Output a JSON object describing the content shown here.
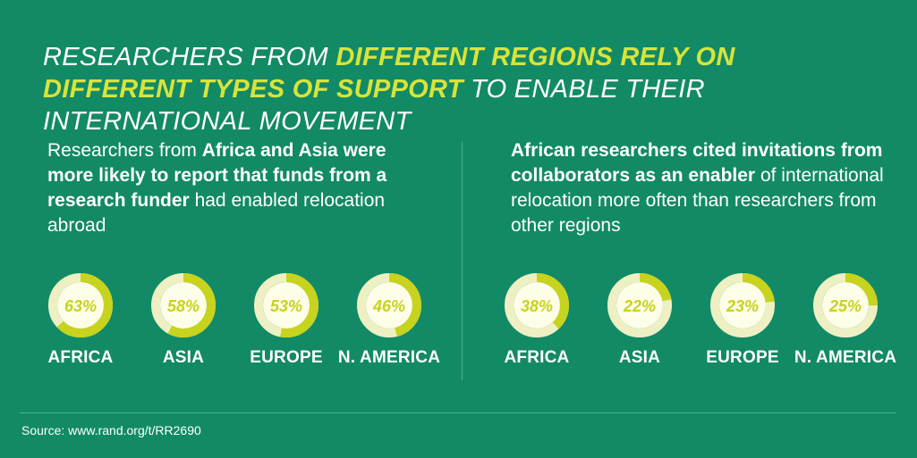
{
  "title": {
    "seg1": "RESEARCHERS FROM ",
    "seg2": "DIFFERENT REGIONS RELY ON DIFFERENT TYPES OF SUPPORT",
    "seg3": " TO ENABLE THEIR INTERNATIONAL MOVEMENT"
  },
  "colors": {
    "background": "#128a66",
    "accent": "#c7d31c",
    "ring_track": "#eef0c4",
    "ring_inner": "#fdfde8"
  },
  "left_panel": {
    "text_1": "Researchers from ",
    "text_2": "Africa and Asia were more likely to report that funds from a research funder",
    "text_3": " had enabled relocation abroad"
  },
  "right_panel": {
    "text_1": "African researchers cited invitations from collaborators as an enabler",
    "text_2": " of international relocation more often than researchers from other regions"
  },
  "chart_data": [
    {
      "type": "donut",
      "description": "Funds from a research funder had enabled relocation abroad",
      "categories": [
        "AFRICA",
        "ASIA",
        "EUROPE",
        "N. AMERICA"
      ],
      "values": [
        63,
        58,
        53,
        46
      ],
      "labels": [
        "63%",
        "58%",
        "53%",
        "46%"
      ],
      "unit": "%",
      "max": 100
    },
    {
      "type": "donut",
      "description": "Invitations from collaborators as an enabler of international relocation",
      "categories": [
        "AFRICA",
        "ASIA",
        "EUROPE",
        "N. AMERICA"
      ],
      "values": [
        38,
        22,
        23,
        25
      ],
      "labels": [
        "38%",
        "22%",
        "23%",
        "25%"
      ],
      "unit": "%",
      "max": 100
    }
  ],
  "source": "Source: www.rand.org/t/RR2690"
}
